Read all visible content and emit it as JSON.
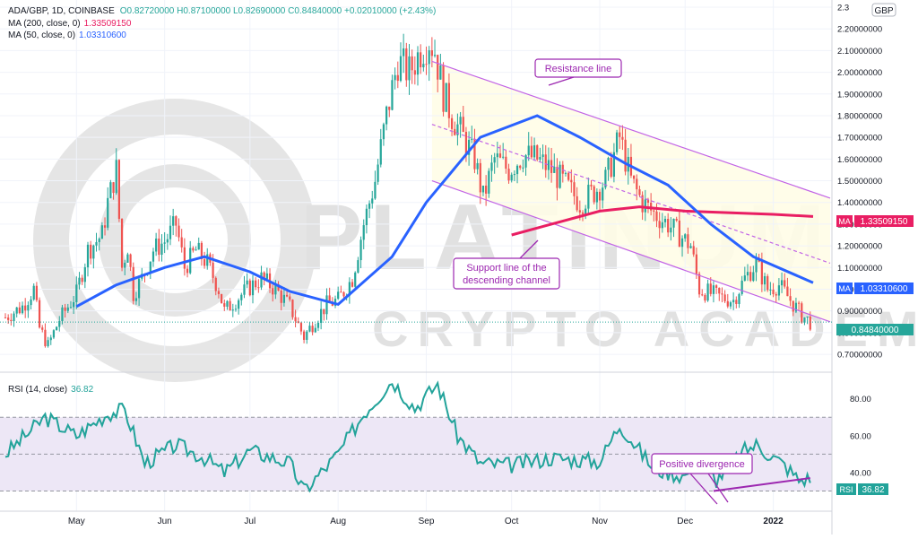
{
  "header": {
    "symbol_line": "ADA/GBP, 1D, COINBASE",
    "ohlc": "O0.82720000 H0.87100000 L0.82690000 C0.84840000 +0.02010000 (+2.43%)",
    "ma200_label": "MA (200, close, 0)",
    "ma200_value": "1.33509150",
    "ma50_label": "MA (50, close, 0)",
    "ma50_value": "1.03310600",
    "currency": "GBP"
  },
  "rsi_header": {
    "label": "RSI (14, close)",
    "value": "36.82"
  },
  "annotations": {
    "resistance": "Resistance line",
    "support_line1": "Support line of the",
    "support_line2": "descending channel",
    "divergence": "Positive divergence"
  },
  "watermark": {
    "line1": "PLATINUM",
    "line2": "CRYPTO ACADEMY"
  },
  "price_badges": {
    "ma200": {
      "tag": "MA",
      "value": "1.33509150"
    },
    "ma50": {
      "tag": "MA",
      "value": "1.03310600"
    },
    "close": {
      "value": "0.84840000"
    },
    "rsi": {
      "tag": "RSI",
      "value": "36.82"
    }
  },
  "colors": {
    "up": "#26a69a",
    "down": "#ef5350",
    "ma50": "#2962ff",
    "ma200": "#e91e63",
    "channel": "#c264e6",
    "rsi": "#22a39a",
    "annotation": "#9c27b0",
    "channel_fill": "#fffde7",
    "rsi_band": "#ede7f6"
  },
  "chart_data": [
    {
      "type": "candlestick",
      "title": "ADA/GBP, 1D, COINBASE",
      "y_ticks": [
        "0.70000000",
        "0.80000000",
        "0.90000000",
        "1.00000000",
        "1.10000000",
        "1.20000000",
        "1.30000000",
        "1.40000000",
        "1.50000000",
        "1.60000000",
        "1.70000000",
        "1.80000000",
        "1.90000000",
        "2.00000000",
        "2.10000000",
        "2.20000000",
        "2.3"
      ],
      "ylim": [
        0.63,
        2.3
      ],
      "x_ticks": [
        "May",
        "Jun",
        "Jul",
        "Aug",
        "Sep",
        "Oct",
        "Nov",
        "Dec",
        "2022"
      ],
      "x_tick_dates": [
        "2021-05-01",
        "2021-06-01",
        "2021-07-01",
        "2021-08-01",
        "2021-09-01",
        "2021-10-01",
        "2021-11-01",
        "2021-12-01",
        "2022-01-01"
      ],
      "xlim": [
        "2021-04-06",
        "2022-01-21"
      ],
      "closes": [
        [
          "2021-04-06",
          0.87
        ],
        [
          "2021-04-12",
          0.92
        ],
        [
          "2021-04-16",
          1.0
        ],
        [
          "2021-04-18",
          0.82
        ],
        [
          "2021-04-21",
          0.74
        ],
        [
          "2021-04-25",
          0.86
        ],
        [
          "2021-05-01",
          0.98
        ],
        [
          "2021-05-05",
          1.18
        ],
        [
          "2021-05-10",
          1.25
        ],
        [
          "2021-05-12",
          1.4
        ],
        [
          "2021-05-15",
          1.55
        ],
        [
          "2021-05-17",
          1.1
        ],
        [
          "2021-05-19",
          1.2
        ],
        [
          "2021-05-21",
          0.98
        ],
        [
          "2021-05-24",
          1.05
        ],
        [
          "2021-05-28",
          1.18
        ],
        [
          "2021-06-01",
          1.22
        ],
        [
          "2021-06-05",
          1.3
        ],
        [
          "2021-06-08",
          1.1
        ],
        [
          "2021-06-12",
          1.18
        ],
        [
          "2021-06-16",
          1.12
        ],
        [
          "2021-06-20",
          1.0
        ],
        [
          "2021-06-22",
          0.9
        ],
        [
          "2021-06-26",
          0.95
        ],
        [
          "2021-06-30",
          1.0
        ],
        [
          "2021-07-05",
          1.05
        ],
        [
          "2021-07-10",
          1.0
        ],
        [
          "2021-07-15",
          0.92
        ],
        [
          "2021-07-20",
          0.78
        ],
        [
          "2021-07-24",
          0.86
        ],
        [
          "2021-07-28",
          0.93
        ],
        [
          "2021-08-01",
          0.95
        ],
        [
          "2021-08-06",
          1.05
        ],
        [
          "2021-08-10",
          1.3
        ],
        [
          "2021-08-14",
          1.5
        ],
        [
          "2021-08-18",
          1.8
        ],
        [
          "2021-08-22",
          2.05
        ],
        [
          "2021-08-26",
          2.0
        ],
        [
          "2021-08-30",
          2.1
        ],
        [
          "2021-09-02",
          2.15
        ],
        [
          "2021-09-04",
          2.1
        ],
        [
          "2021-09-07",
          1.9
        ],
        [
          "2021-09-10",
          1.8
        ],
        [
          "2021-09-14",
          1.7
        ],
        [
          "2021-09-18",
          1.6
        ],
        [
          "2021-09-21",
          1.42
        ],
        [
          "2021-09-25",
          1.6
        ],
        [
          "2021-09-30",
          1.55
        ],
        [
          "2021-10-05",
          1.62
        ],
        [
          "2021-10-10",
          1.6
        ],
        [
          "2021-10-15",
          1.55
        ],
        [
          "2021-10-20",
          1.48
        ],
        [
          "2021-10-25",
          1.4
        ],
        [
          "2021-10-30",
          1.45
        ],
        [
          "2021-11-03",
          1.5
        ],
        [
          "2021-11-08",
          1.7
        ],
        [
          "2021-11-12",
          1.5
        ],
        [
          "2021-11-16",
          1.4
        ],
        [
          "2021-11-20",
          1.35
        ],
        [
          "2021-11-25",
          1.3
        ],
        [
          "2021-11-29",
          1.25
        ],
        [
          "2021-12-03",
          1.2
        ],
        [
          "2021-12-06",
          1.0
        ],
        [
          "2021-12-10",
          0.98
        ],
        [
          "2021-12-14",
          0.96
        ],
        [
          "2021-12-18",
          0.95
        ],
        [
          "2021-12-22",
          1.05
        ],
        [
          "2021-12-26",
          1.12
        ],
        [
          "2021-12-30",
          1.0
        ],
        [
          "2022-01-03",
          1.02
        ],
        [
          "2022-01-07",
          0.95
        ],
        [
          "2022-01-11",
          0.88
        ],
        [
          "2022-01-14",
          0.8484
        ]
      ],
      "series": [
        {
          "name": "MA (200, close, 0)",
          "values": [
            [
              "2021-10-01",
              1.25
            ],
            [
              "2021-10-15",
              1.3
            ],
            [
              "2021-11-01",
              1.36
            ],
            [
              "2021-11-15",
              1.38
            ],
            [
              "2021-12-01",
              1.36
            ],
            [
              "2022-01-01",
              1.345
            ],
            [
              "2022-01-15",
              1.335
            ]
          ]
        },
        {
          "name": "MA (50, close, 0)",
          "values": [
            [
              "2021-05-01",
              0.92
            ],
            [
              "2021-05-15",
              1.02
            ],
            [
              "2021-06-01",
              1.1
            ],
            [
              "2021-06-15",
              1.15
            ],
            [
              "2021-07-01",
              1.08
            ],
            [
              "2021-07-15",
              0.99
            ],
            [
              "2021-08-01",
              0.93
            ],
            [
              "2021-08-20",
              1.15
            ],
            [
              "2021-09-01",
              1.4
            ],
            [
              "2021-09-20",
              1.7
            ],
            [
              "2021-10-10",
              1.8
            ],
            [
              "2021-10-25",
              1.7
            ],
            [
              "2021-11-10",
              1.58
            ],
            [
              "2021-11-25",
              1.48
            ],
            [
              "2021-12-10",
              1.3
            ],
            [
              "2021-12-25",
              1.15
            ],
            [
              "2022-01-15",
              1.03
            ]
          ]
        }
      ],
      "channel": {
        "upper": [
          [
            "2021-09-03",
            2.05
          ],
          [
            "2022-01-21",
            1.42
          ]
        ],
        "lower": [
          [
            "2021-09-03",
            1.5
          ],
          [
            "2022-01-21",
            0.85
          ]
        ],
        "mid": [
          [
            "2021-09-03",
            1.76
          ],
          [
            "2022-01-21",
            1.12
          ]
        ]
      },
      "annotations": [
        "Resistance line",
        "Support line of the descending channel"
      ]
    },
    {
      "type": "line",
      "title": "RSI (14, close)",
      "y_ticks": [
        "40.00",
        "60.00",
        "80.00"
      ],
      "ylim": [
        20,
        93
      ],
      "bands": [
        30,
        70
      ],
      "midline": 50,
      "x": [
        "2021-04-06",
        "2021-04-20",
        "2021-05-01",
        "2021-05-12",
        "2021-05-18",
        "2021-05-25",
        "2021-06-05",
        "2021-06-15",
        "2021-06-22",
        "2021-07-01",
        "2021-07-15",
        "2021-07-20",
        "2021-08-01",
        "2021-08-10",
        "2021-08-20",
        "2021-08-28",
        "2021-09-05",
        "2021-09-12",
        "2021-09-20",
        "2021-10-01",
        "2021-10-15",
        "2021-11-01",
        "2021-11-08",
        "2021-11-20",
        "2021-12-01",
        "2021-12-05",
        "2021-12-12",
        "2021-12-22",
        "2021-12-26",
        "2022-01-05",
        "2022-01-10",
        "2022-01-14"
      ],
      "values": [
        50,
        70,
        60,
        72,
        74,
        45,
        55,
        48,
        40,
        52,
        45,
        30,
        50,
        72,
        90,
        75,
        88,
        60,
        45,
        44,
        48,
        46,
        66,
        42,
        38,
        48,
        36,
        52,
        55,
        44,
        36,
        36.82
      ],
      "annotations": [
        "Positive divergence"
      ]
    }
  ]
}
